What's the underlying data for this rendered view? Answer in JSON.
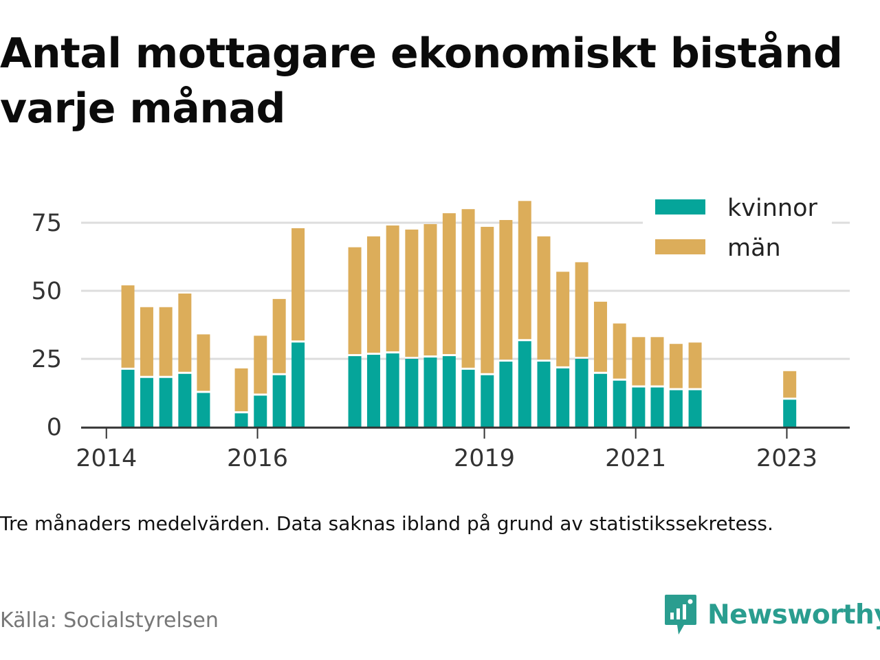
{
  "title": "Antal mottagare ekonomiskt bistånd varje månad",
  "note": "Tre månaders medelvärden. Data saknas ibland på grund av statistikssekretess.",
  "source": "Källa: Socialstyrelsen",
  "brand": {
    "name": "Newsworthy",
    "color": "#2a9d8f"
  },
  "colors": {
    "kvinnor": "#05a59a",
    "man": "#dcad5a",
    "grid": "#dddddd",
    "axis": "#333333"
  },
  "chart_data": {
    "type": "bar",
    "stacked": true,
    "title": "Antal mottagare ekonomiskt bistånd varje månad",
    "x_label": "",
    "y_label": "",
    "y_range": [
      0,
      85
    ],
    "y_ticks": [
      0,
      25,
      50,
      75
    ],
    "x_range": [
      "2013-09-01",
      "2023-11-01"
    ],
    "x_ticks": [
      {
        "label": "2014",
        "date": "2014-01-01"
      },
      {
        "label": "2016",
        "date": "2016-01-01"
      },
      {
        "label": "2019",
        "date": "2019-01-01"
      },
      {
        "label": "2021",
        "date": "2021-01-01"
      },
      {
        "label": "2023",
        "date": "2023-01-01"
      }
    ],
    "grid": true,
    "legend_position": "top-right",
    "legend": [
      {
        "label": "kvinnor",
        "series": "kvinnor"
      },
      {
        "label": "män",
        "series": "man"
      }
    ],
    "points": [
      {
        "date": "2014-04",
        "kvinnor": 21,
        "man": 31
      },
      {
        "date": "2014-07",
        "kvinnor": 18,
        "man": 26
      },
      {
        "date": "2014-10",
        "kvinnor": 18,
        "man": 26
      },
      {
        "date": "2015-01",
        "kvinnor": 19.5,
        "man": 29.5
      },
      {
        "date": "2015-04",
        "kvinnor": 12.5,
        "man": 21.5
      },
      {
        "date": "2015-10",
        "kvinnor": 5,
        "man": 16.5
      },
      {
        "date": "2016-01",
        "kvinnor": 11.5,
        "man": 22
      },
      {
        "date": "2016-04",
        "kvinnor": 19,
        "man": 28
      },
      {
        "date": "2016-07",
        "kvinnor": 31,
        "man": 42
      },
      {
        "date": "2017-04",
        "kvinnor": 26,
        "man": 40
      },
      {
        "date": "2017-07",
        "kvinnor": 26.5,
        "man": 43.5
      },
      {
        "date": "2017-10",
        "kvinnor": 27,
        "man": 47
      },
      {
        "date": "2018-01",
        "kvinnor": 25,
        "man": 47.5
      },
      {
        "date": "2018-04",
        "kvinnor": 25.5,
        "man": 49
      },
      {
        "date": "2018-07",
        "kvinnor": 26,
        "man": 52.5
      },
      {
        "date": "2018-10",
        "kvinnor": 21,
        "man": 59
      },
      {
        "date": "2019-01",
        "kvinnor": 19,
        "man": 54.5
      },
      {
        "date": "2019-04",
        "kvinnor": 24,
        "man": 52
      },
      {
        "date": "2019-07",
        "kvinnor": 31.5,
        "man": 51.5
      },
      {
        "date": "2019-10",
        "kvinnor": 24,
        "man": 46
      },
      {
        "date": "2020-01",
        "kvinnor": 21.5,
        "man": 35.5
      },
      {
        "date": "2020-04",
        "kvinnor": 25,
        "man": 35.5
      },
      {
        "date": "2020-07",
        "kvinnor": 19.5,
        "man": 26.5
      },
      {
        "date": "2020-10",
        "kvinnor": 17,
        "man": 21
      },
      {
        "date": "2021-01",
        "kvinnor": 14.5,
        "man": 18.5
      },
      {
        "date": "2021-04",
        "kvinnor": 14.5,
        "man": 18.5
      },
      {
        "date": "2021-07",
        "kvinnor": 13.5,
        "man": 17
      },
      {
        "date": "2021-10",
        "kvinnor": 13.5,
        "man": 17.5
      },
      {
        "date": "2023-01",
        "kvinnor": 10,
        "man": 10.5
      }
    ]
  }
}
